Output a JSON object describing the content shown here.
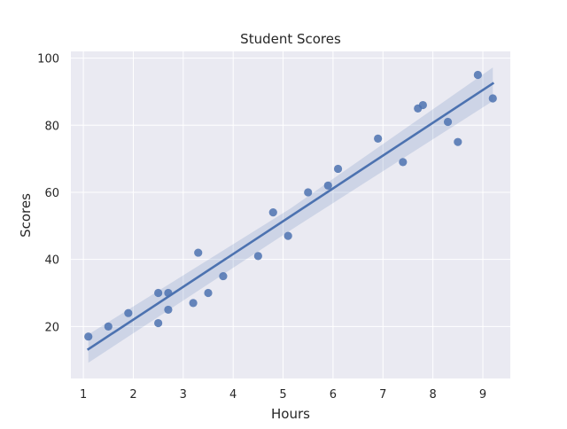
{
  "chart_data": {
    "type": "scatter",
    "title": "Student Scores",
    "xlabel": "Hours",
    "ylabel": "Scores",
    "xlim": [
      0.75,
      9.55
    ],
    "ylim": [
      4.5,
      102
    ],
    "xticks": [
      1,
      2,
      3,
      4,
      5,
      6,
      7,
      8,
      9
    ],
    "yticks": [
      20,
      40,
      60,
      80,
      100
    ],
    "grid": true,
    "style": "seaborn-darkgrid",
    "colors": {
      "background": "#EAEAF2",
      "grid": "#FFFFFF",
      "points": "#4C72B0",
      "line": "#4C72B0",
      "band": "#4C72B0"
    },
    "points": [
      {
        "x": 2.5,
        "y": 21
      },
      {
        "x": 5.1,
        "y": 47
      },
      {
        "x": 3.2,
        "y": 27
      },
      {
        "x": 8.5,
        "y": 75
      },
      {
        "x": 3.5,
        "y": 30
      },
      {
        "x": 1.5,
        "y": 20
      },
      {
        "x": 9.2,
        "y": 88
      },
      {
        "x": 5.5,
        "y": 60
      },
      {
        "x": 8.3,
        "y": 81
      },
      {
        "x": 2.7,
        "y": 25
      },
      {
        "x": 7.7,
        "y": 85
      },
      {
        "x": 5.9,
        "y": 62
      },
      {
        "x": 4.5,
        "y": 41
      },
      {
        "x": 3.3,
        "y": 42
      },
      {
        "x": 1.1,
        "y": 17
      },
      {
        "x": 8.9,
        "y": 95
      },
      {
        "x": 2.5,
        "y": 30
      },
      {
        "x": 1.9,
        "y": 24
      },
      {
        "x": 6.1,
        "y": 67
      },
      {
        "x": 7.4,
        "y": 69
      },
      {
        "x": 2.7,
        "y": 30
      },
      {
        "x": 4.8,
        "y": 54
      },
      {
        "x": 3.8,
        "y": 35
      },
      {
        "x": 6.9,
        "y": 76
      },
      {
        "x": 7.8,
        "y": 86
      }
    ],
    "regression": {
      "x_range": [
        1.1,
        9.2
      ],
      "slope": 9.78,
      "intercept": 2.48,
      "confidence_band": [
        {
          "x": 1.1,
          "lower": 9.2,
          "upper": 17.6
        },
        {
          "x": 5.15,
          "lower": 48.7,
          "upper": 55.2
        },
        {
          "x": 9.2,
          "lower": 87.2,
          "upper": 97.2
        }
      ]
    }
  }
}
